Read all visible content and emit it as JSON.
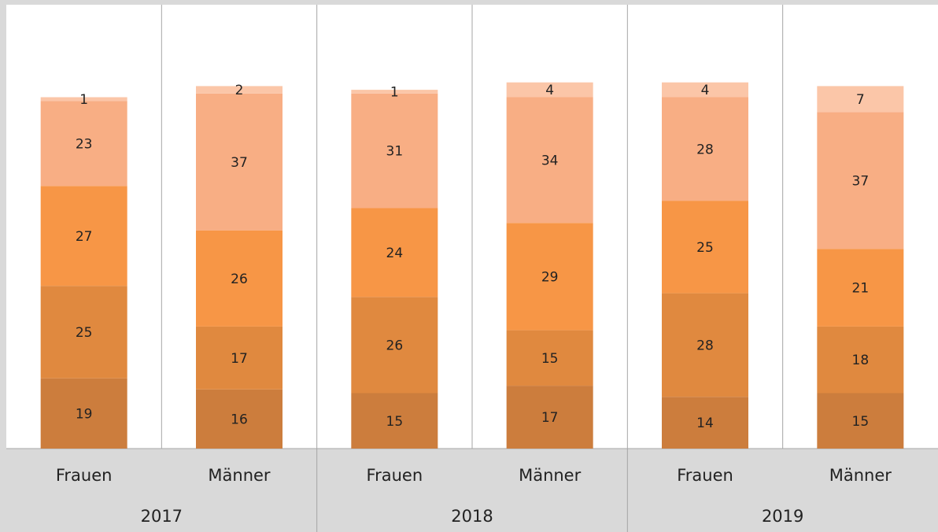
{
  "chart_data": {
    "type": "stacked_bar",
    "categories": [
      "Frauen",
      "Männer",
      "Frauen",
      "Männer",
      "Frauen",
      "Männer"
    ],
    "groups": [
      "2017",
      "2018",
      "2019"
    ],
    "series": [
      {
        "color": "#cc7d3d",
        "values": [
          19,
          16,
          15,
          17,
          14,
          15
        ]
      },
      {
        "color": "#e0893f",
        "values": [
          25,
          17,
          26,
          15,
          28,
          18
        ]
      },
      {
        "color": "#f79646",
        "values": [
          27,
          26,
          24,
          29,
          25,
          21
        ]
      },
      {
        "color": "#f8ae84",
        "values": [
          23,
          37,
          31,
          34,
          28,
          37
        ]
      },
      {
        "color": "#fbc6a8",
        "values": [
          1,
          2,
          1,
          4,
          4,
          7
        ]
      }
    ]
  }
}
